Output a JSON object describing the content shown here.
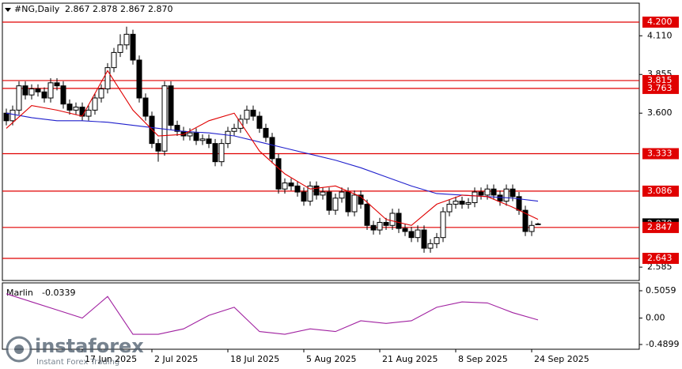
{
  "chart_data": {
    "type": "candlestick",
    "symbol": "#NG,Daily",
    "quote": "2.867 2.878 2.867 2.870",
    "ylim": [
      2.497,
      4.325
    ],
    "yticks": [
      {
        "value": 4.11,
        "label": "4.110"
      },
      3.855,
      {
        "value": 3.6,
        "label": "3.600"
      },
      2.585
    ],
    "levels": [
      {
        "value": 4.2,
        "label": "4.200"
      },
      3.815,
      3.763,
      3.333,
      3.086,
      2.847,
      2.643
    ],
    "level_color": "#e00000",
    "current_price": {
      "value": 2.87,
      "label": "2.870"
    },
    "xticks": [
      {
        "index": 12,
        "label": "17 Jun 2025"
      },
      {
        "index": 23,
        "label": "2 Jul 2025"
      },
      {
        "index": 35,
        "label": "18 Jul 2025"
      },
      {
        "index": 47,
        "label": "5 Aug 2025"
      },
      {
        "index": 59,
        "label": "21 Aug 2025"
      },
      {
        "index": 71,
        "label": "8 Sep 2025"
      },
      {
        "index": 83,
        "label": "24 Sep 2025"
      }
    ],
    "candles": [
      [
        3.6,
        3.63,
        3.52,
        3.55
      ],
      [
        3.55,
        3.65,
        3.52,
        3.62
      ],
      [
        3.62,
        3.81,
        3.59,
        3.78
      ],
      [
        3.78,
        3.81,
        3.69,
        3.72
      ],
      [
        3.72,
        3.79,
        3.69,
        3.76
      ],
      [
        3.76,
        3.79,
        3.71,
        3.74
      ],
      [
        3.74,
        3.77,
        3.67,
        3.7
      ],
      [
        3.7,
        3.83,
        3.67,
        3.8
      ],
      [
        3.8,
        3.83,
        3.75,
        3.78
      ],
      [
        3.78,
        3.81,
        3.63,
        3.66
      ],
      [
        3.66,
        3.69,
        3.59,
        3.62
      ],
      [
        3.62,
        3.67,
        3.59,
        3.64
      ],
      [
        3.64,
        3.67,
        3.55,
        3.58
      ],
      [
        3.58,
        3.65,
        3.55,
        3.62
      ],
      [
        3.62,
        3.73,
        3.59,
        3.7
      ],
      [
        3.7,
        3.79,
        3.67,
        3.76
      ],
      [
        3.76,
        3.93,
        3.73,
        3.9
      ],
      [
        3.9,
        4.03,
        3.87,
        4.0
      ],
      [
        4.0,
        4.12,
        3.97,
        4.05
      ],
      [
        4.05,
        4.17,
        4.02,
        4.12
      ],
      [
        4.12,
        4.15,
        3.92,
        3.95
      ],
      [
        3.95,
        3.98,
        3.67,
        3.7
      ],
      [
        3.7,
        3.73,
        3.55,
        3.58
      ],
      [
        3.58,
        3.61,
        3.37,
        3.4
      ],
      [
        3.4,
        3.43,
        3.28,
        3.35
      ],
      [
        3.35,
        3.81,
        3.32,
        3.78
      ],
      [
        3.78,
        3.81,
        3.49,
        3.52
      ],
      [
        3.52,
        3.55,
        3.45,
        3.48
      ],
      [
        3.48,
        3.51,
        3.42,
        3.45
      ],
      [
        3.45,
        3.5,
        3.42,
        3.47
      ],
      [
        3.47,
        3.5,
        3.39,
        3.42
      ],
      [
        3.42,
        3.46,
        3.39,
        3.43
      ],
      [
        3.43,
        3.46,
        3.37,
        3.4
      ],
      [
        3.4,
        3.43,
        3.25,
        3.28
      ],
      [
        3.28,
        3.43,
        3.25,
        3.4
      ],
      [
        3.4,
        3.51,
        3.37,
        3.48
      ],
      [
        3.48,
        3.53,
        3.45,
        3.5
      ],
      [
        3.5,
        3.59,
        3.47,
        3.56
      ],
      [
        3.56,
        3.65,
        3.53,
        3.62
      ],
      [
        3.62,
        3.65,
        3.55,
        3.58
      ],
      [
        3.58,
        3.61,
        3.47,
        3.5
      ],
      [
        3.5,
        3.53,
        3.41,
        3.44
      ],
      [
        3.44,
        3.47,
        3.27,
        3.3
      ],
      [
        3.3,
        3.33,
        3.07,
        3.1
      ],
      [
        3.1,
        3.17,
        3.07,
        3.14
      ],
      [
        3.14,
        3.17,
        3.09,
        3.12
      ],
      [
        3.12,
        3.15,
        3.05,
        3.08
      ],
      [
        3.08,
        3.11,
        2.99,
        3.02
      ],
      [
        3.02,
        3.15,
        2.99,
        3.12
      ],
      [
        3.12,
        3.15,
        3.03,
        3.06
      ],
      [
        3.06,
        3.11,
        3.03,
        3.08
      ],
      [
        3.08,
        3.11,
        2.93,
        2.96
      ],
      [
        2.96,
        3.07,
        2.93,
        3.04
      ],
      [
        3.04,
        3.11,
        3.01,
        3.08
      ],
      [
        3.08,
        3.11,
        2.92,
        2.95
      ],
      [
        2.95,
        3.09,
        2.92,
        3.06
      ],
      [
        3.06,
        3.09,
        2.97,
        3.0
      ],
      [
        3.0,
        3.03,
        2.83,
        2.86
      ],
      [
        2.86,
        2.89,
        2.8,
        2.83
      ],
      [
        2.83,
        2.91,
        2.8,
        2.88
      ],
      [
        2.88,
        2.91,
        2.83,
        2.86
      ],
      [
        2.86,
        2.97,
        2.83,
        2.94
      ],
      [
        2.94,
        2.97,
        2.81,
        2.84
      ],
      [
        2.84,
        2.87,
        2.79,
        2.82
      ],
      [
        2.82,
        2.85,
        2.75,
        2.78
      ],
      [
        2.78,
        2.86,
        2.75,
        2.83
      ],
      [
        2.83,
        2.86,
        2.68,
        2.71
      ],
      [
        2.71,
        2.77,
        2.68,
        2.74
      ],
      [
        2.74,
        2.81,
        2.71,
        2.78
      ],
      [
        2.78,
        2.98,
        2.75,
        2.95
      ],
      [
        2.95,
        3.03,
        2.92,
        3.0
      ],
      [
        3.0,
        3.05,
        2.97,
        3.02
      ],
      [
        3.02,
        3.05,
        2.97,
        3.0
      ],
      [
        3.0,
        3.04,
        2.97,
        3.01
      ],
      [
        3.01,
        3.11,
        2.98,
        3.08
      ],
      [
        3.08,
        3.11,
        3.03,
        3.06
      ],
      [
        3.06,
        3.13,
        3.03,
        3.1
      ],
      [
        3.1,
        3.13,
        3.03,
        3.06
      ],
      [
        3.06,
        3.09,
        2.99,
        3.02
      ],
      [
        3.02,
        3.13,
        2.99,
        3.1
      ],
      [
        3.1,
        3.13,
        3.02,
        3.05
      ],
      [
        3.05,
        3.08,
        2.93,
        2.96
      ],
      [
        2.96,
        2.99,
        2.79,
        2.82
      ],
      [
        2.82,
        2.89,
        2.79,
        2.86
      ],
      [
        2.867,
        2.878,
        2.867,
        2.87
      ]
    ],
    "ma_x": [
      0,
      4,
      8,
      12,
      16,
      20,
      24,
      28,
      32,
      36,
      40,
      44,
      48,
      52,
      56,
      60,
      64,
      68,
      72,
      76,
      80,
      84
    ],
    "series": [
      {
        "color": "#1f1fcc",
        "values": [
          3.6,
          3.57,
          3.55,
          3.55,
          3.54,
          3.52,
          3.5,
          3.48,
          3.47,
          3.45,
          3.41,
          3.37,
          3.33,
          3.29,
          3.24,
          3.18,
          3.12,
          3.07,
          3.06,
          3.05,
          3.04,
          3.02
        ]
      },
      {
        "color": "#e00000",
        "values": [
          3.5,
          3.65,
          3.62,
          3.58,
          3.88,
          3.62,
          3.45,
          3.46,
          3.55,
          3.6,
          3.35,
          3.2,
          3.1,
          3.12,
          3.05,
          2.9,
          2.86,
          3.0,
          3.06,
          3.05,
          2.98,
          2.9
        ]
      }
    ],
    "indicator": {
      "name": "Marlin",
      "last": -0.0339,
      "color": "#a020a0",
      "ylim": [
        -0.578,
        0.652
      ],
      "yticks": [
        0.5059,
        {
          "value": 0,
          "label": "0.00"
        },
        -0.4899
      ],
      "values": [
        0.45,
        0.3,
        0.15,
        0.0,
        0.4,
        -0.3,
        -0.3,
        -0.2,
        0.05,
        0.2,
        -0.25,
        -0.3,
        -0.2,
        -0.25,
        -0.05,
        -0.1,
        -0.05,
        0.2,
        0.3,
        0.28,
        0.1,
        -0.0339
      ]
    },
    "watermark": {
      "name": "instaforex",
      "tagline": "Instant Forex Trading"
    }
  }
}
